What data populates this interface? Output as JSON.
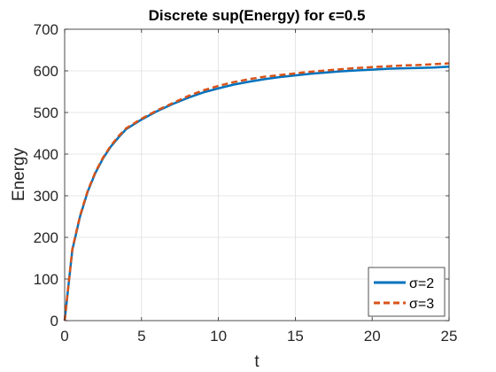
{
  "chart_data": {
    "type": "line",
    "title": "Discrete sup(Energy) for ϵ=0.5",
    "xlabel": "t",
    "ylabel": "Energy",
    "xlim": [
      0,
      25
    ],
    "ylim": [
      0,
      700
    ],
    "xticks": [
      0,
      5,
      10,
      15,
      20,
      25
    ],
    "yticks": [
      0,
      100,
      200,
      300,
      400,
      500,
      600,
      700
    ],
    "grid": true,
    "legend_position": "bottom-right",
    "x": [
      0,
      0.5,
      1,
      1.5,
      2,
      2.5,
      3,
      3.5,
      4,
      5,
      6,
      7,
      8,
      9,
      10,
      11,
      12,
      13,
      14,
      15,
      16,
      17,
      18,
      19,
      20,
      21,
      22,
      23,
      24,
      25
    ],
    "series": [
      {
        "name": "σ=2",
        "color": "#0072BD",
        "dash": "solid",
        "values": [
          0,
          170,
          250,
          310,
          355,
          390,
          418,
          440,
          460,
          483,
          503,
          520,
          535,
          548,
          558,
          567,
          574,
          580,
          585,
          589,
          593,
          596,
          599,
          601,
          603,
          605,
          606,
          607,
          608,
          610
        ]
      },
      {
        "name": "σ=3",
        "color": "#D95319",
        "dash": "dashed",
        "values": [
          0,
          172,
          252,
          312,
          357,
          392,
          420,
          443,
          462,
          485,
          505,
          522,
          539,
          553,
          564,
          573,
          580,
          586,
          590,
          594,
          598,
          601,
          604,
          607,
          609,
          611,
          613,
          614,
          616,
          618
        ]
      }
    ]
  }
}
